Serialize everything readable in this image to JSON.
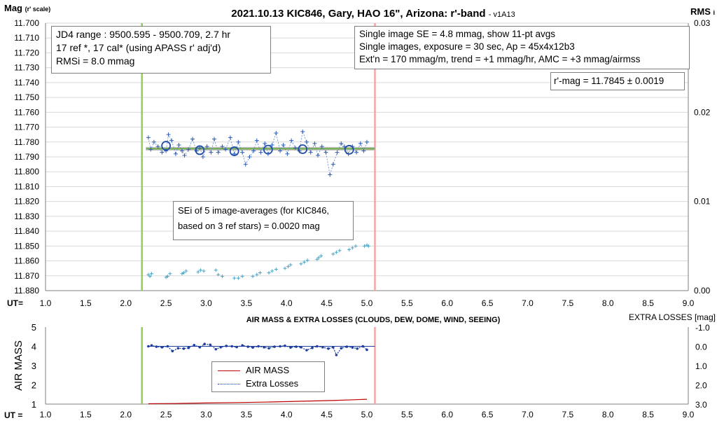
{
  "chart_data": [
    {
      "type": "scatter",
      "title": "2021.10.13 KIC846, Gary, HAO 16\", Arizona: r'-band",
      "title_suffix": "- v1A13",
      "ylabel": "Mag",
      "ylabel_sub": "(r' scale)",
      "y2label": "RMS",
      "y2label_sub": "i",
      "xlabel": "UT=",
      "xlim": [
        1.0,
        9.0
      ],
      "ylim": [
        11.88,
        11.7
      ],
      "y2lim": [
        0.0,
        0.03
      ],
      "y2ticks": [
        "0.00",
        "0.01",
        "0.02",
        "0.03"
      ],
      "grid": true,
      "vlines": [
        {
          "x": 2.2,
          "color": "#92d050"
        },
        {
          "x": 5.1,
          "color": "#f4a6a6"
        }
      ],
      "fit_line": {
        "x": [
          2.25,
          5.1
        ],
        "y": 11.7845
      },
      "series": [
        {
          "values_role": "single images",
          "color": "#2e5cb8",
          "x": [
            2.28,
            2.31,
            2.35,
            2.4,
            2.45,
            2.5,
            2.53,
            2.57,
            2.62,
            2.66,
            2.7,
            2.73,
            2.78,
            2.83,
            2.88,
            2.92,
            2.96,
            3.01,
            3.06,
            3.1,
            3.15,
            3.2,
            3.24,
            3.3,
            3.35,
            3.4,
            3.45,
            3.49,
            3.54,
            3.59,
            3.63,
            3.68,
            3.73,
            3.77,
            3.82,
            3.87,
            3.92,
            3.96,
            4.01,
            4.06,
            4.11,
            4.16,
            4.2,
            4.25,
            4.3,
            4.35,
            4.39,
            4.44,
            4.49,
            4.54,
            4.58,
            4.63,
            4.68,
            4.72,
            4.77,
            4.82,
            4.87,
            4.92,
            4.96,
            5.0
          ],
          "y": [
            11.777,
            11.785,
            11.78,
            11.783,
            11.787,
            11.786,
            11.775,
            11.779,
            11.788,
            11.782,
            11.786,
            11.789,
            11.785,
            11.778,
            11.786,
            11.784,
            11.79,
            11.783,
            11.787,
            11.778,
            11.787,
            11.783,
            11.785,
            11.777,
            11.788,
            11.78,
            11.787,
            11.795,
            11.79,
            11.786,
            11.779,
            11.787,
            11.781,
            11.788,
            11.782,
            11.774,
            11.786,
            11.782,
            11.788,
            11.779,
            11.784,
            11.786,
            11.773,
            11.78,
            11.787,
            11.781,
            11.789,
            11.783,
            11.787,
            11.802,
            11.795,
            11.787,
            11.781,
            11.783,
            11.788,
            11.783,
            11.787,
            11.781,
            11.786,
            11.78
          ]
        },
        {
          "values_role": "11-pt averages",
          "color": "#1f4ea8",
          "x": [
            2.5,
            2.92,
            3.35,
            3.77,
            4.2,
            4.78
          ],
          "y": [
            11.7825,
            11.7855,
            11.7862,
            11.7851,
            11.7848,
            11.7852
          ]
        },
        {
          "values_role": "SEi of 5 image-averages",
          "color": "#4ba3c3",
          "axis": "right",
          "x": [
            2.28,
            2.3,
            2.32,
            2.5,
            2.52,
            2.55,
            2.7,
            2.72,
            2.75,
            2.9,
            2.93,
            2.97,
            3.12,
            3.15,
            3.2,
            3.35,
            3.4,
            3.45,
            3.58,
            3.63,
            3.67,
            3.78,
            3.82,
            3.87,
            3.98,
            4.02,
            4.05,
            4.18,
            4.22,
            4.26,
            4.38,
            4.4,
            4.43,
            4.58,
            4.62,
            4.66,
            4.78,
            4.82,
            4.86,
            4.97,
            5.0,
            5.02
          ],
          "y": [
            0.0018,
            0.0016,
            0.0019,
            0.0015,
            0.0016,
            0.0019,
            0.0019,
            0.002,
            0.0022,
            0.0021,
            0.0023,
            0.0022,
            0.0023,
            0.0018,
            0.0016,
            0.0014,
            0.0014,
            0.0016,
            0.0016,
            0.0018,
            0.002,
            0.002,
            0.0022,
            0.0024,
            0.0025,
            0.0027,
            0.0029,
            0.003,
            0.0032,
            0.0034,
            0.0035,
            0.0037,
            0.0039,
            0.0041,
            0.0043,
            0.0045,
            0.0046,
            0.0048,
            0.005,
            0.005,
            0.0051,
            0.005
          ]
        }
      ],
      "info_box_left": [
        "JD4 range : 9500.595 - 9500.709,  2.7  hr",
        "17 ref *, 17 cal* (using APASS r' adj'd)",
        "RMSi = 8.0 mmag"
      ],
      "info_box_right": [
        "Single image SE = 4.8 mmag, show  11-pt avgs",
        "Single images, exposure = 30 sec, Ap = 45x4x12b3",
        "Ext'n = 170 mmag/m, trend = +1  mmag/hr, AMC = +3 mmag/airmss"
      ],
      "result_box": "r'-mag = 11.7845 ± 0.0019",
      "sei_note": [
        "SEi of 5 image-averages (for KIC846,",
        "based on 3 ref stars) = 0.0020 mag"
      ]
    },
    {
      "type": "line",
      "title": "AIR MASS & EXTRA LOSSES (CLOUDS, DEW, DOME, WIND, SEEING)",
      "ylabel": "AIR MASS",
      "y2label": "EXTRA LOSSES [mag]",
      "xlabel": "UT =",
      "xlim": [
        1.0,
        9.0
      ],
      "ylim": [
        1,
        5
      ],
      "y2lim": [
        3.0,
        -1.0
      ],
      "y2ticks": [
        "-1.0",
        "0.0",
        "1.0",
        "2.0",
        "3.0"
      ],
      "vlines": [
        {
          "x": 2.2,
          "color": "#92d050"
        },
        {
          "x": 5.1,
          "color": "#f4a6a6"
        }
      ],
      "series": [
        {
          "name": "AIR MASS",
          "color": "#c00000",
          "x": [
            2.28,
            2.6,
            3.0,
            3.4,
            3.8,
            4.2,
            4.6,
            5.0
          ],
          "y": [
            1.02,
            1.03,
            1.06,
            1.08,
            1.11,
            1.15,
            1.19,
            1.25
          ]
        },
        {
          "name": "Extra Losses",
          "color": "#1f3f9f",
          "axis": "right",
          "x": [
            2.28,
            2.32,
            2.38,
            2.45,
            2.52,
            2.58,
            2.65,
            2.72,
            2.78,
            2.85,
            2.92,
            2.98,
            3.05,
            3.12,
            3.18,
            3.25,
            3.32,
            3.38,
            3.45,
            3.52,
            3.58,
            3.65,
            3.72,
            3.78,
            3.85,
            3.92,
            3.98,
            4.05,
            4.12,
            4.18,
            4.25,
            4.32,
            4.38,
            4.45,
            4.52,
            4.58,
            4.62,
            4.68,
            4.75,
            4.82,
            4.88,
            4.95,
            5.0
          ],
          "y": [
            0.0,
            -0.05,
            0.02,
            0.05,
            0.0,
            0.25,
            0.1,
            0.12,
            0.08,
            -0.06,
            0.05,
            -0.12,
            -0.08,
            0.15,
            0.05,
            -0.02,
            0.0,
            0.04,
            -0.05,
            0.02,
            0.06,
            0.0,
            0.05,
            0.1,
            0.02,
            0.0,
            -0.03,
            0.06,
            0.02,
            0.05,
            0.2,
            0.08,
            0.0,
            0.05,
            0.12,
            0.05,
            0.45,
            0.1,
            0.02,
            0.06,
            0.12,
            0.0,
            0.18
          ]
        }
      ],
      "legend": "center-left"
    }
  ],
  "xticks": [
    "1.0",
    "1.5",
    "2.0",
    "2.5",
    "3.0",
    "3.5",
    "4.0",
    "4.5",
    "5.0",
    "5.5",
    "6.0",
    "6.5",
    "7.0",
    "7.5",
    "8.0",
    "8.5",
    "9.0"
  ],
  "yticks_top": [
    "11.700",
    "11.710",
    "11.720",
    "11.730",
    "11.740",
    "11.750",
    "11.760",
    "11.770",
    "11.780",
    "11.790",
    "11.800",
    "11.810",
    "11.820",
    "11.830",
    "11.840",
    "11.850",
    "11.860",
    "11.870",
    "11.880"
  ],
  "yticks_bottom": [
    "5",
    "4",
    "3",
    "2",
    "1"
  ],
  "colors": {
    "grid": "#d9d9d9",
    "axis": "#7f7f7f",
    "green_line": "#92d050",
    "pink_line": "#f4a6a6",
    "fit_band": "#bfbfbf",
    "fit_line": "#70ad47"
  }
}
